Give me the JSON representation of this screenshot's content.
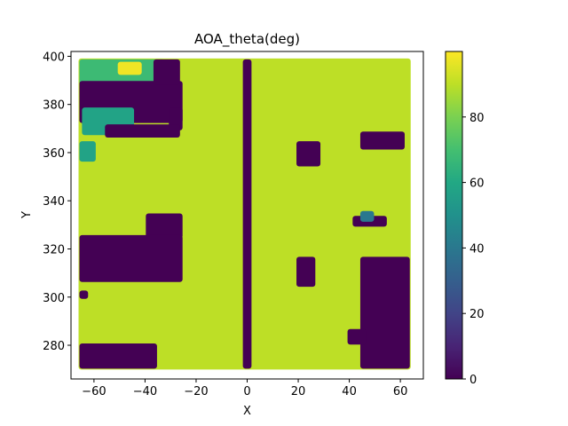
{
  "chart_data": {
    "type": "heatmap",
    "title": "AOA_theta(deg)",
    "xlabel": "X",
    "ylabel": "Y",
    "xlim": [
      -69,
      69
    ],
    "ylim": [
      266,
      402
    ],
    "xticks": [
      -60,
      -40,
      -20,
      0,
      20,
      40,
      60
    ],
    "yticks": [
      280,
      300,
      320,
      340,
      360,
      380,
      400
    ],
    "xtick_labels": [
      "−60",
      "−40",
      "−20",
      "0",
      "20",
      "40",
      "60"
    ],
    "ytick_labels": [
      "280",
      "300",
      "320",
      "340",
      "360",
      "380",
      "400"
    ],
    "colormap": "viridis",
    "color_range": [
      0,
      100
    ],
    "colorbar_ticks": [
      0,
      20,
      40,
      60,
      80
    ],
    "colorbar_tick_labels": [
      "0",
      "20",
      "40",
      "60",
      "80"
    ],
    "grid": false,
    "scatter_extent": {
      "x": [
        -65,
        63
      ],
      "y": [
        271,
        398
      ]
    },
    "background_value": 90,
    "regions": [
      {
        "x": [
          -65,
          -33
        ],
        "y": [
          383,
          398
        ],
        "value": 68,
        "note": "green patch"
      },
      {
        "x": [
          -50,
          -42
        ],
        "y": [
          393,
          397
        ],
        "value": 98,
        "note": "yellow spot"
      },
      {
        "x": [
          -65,
          -26
        ],
        "y": [
          373,
          389
        ],
        "value": 0
      },
      {
        "x": [
          -36,
          -27
        ],
        "y": [
          389,
          398
        ],
        "value": 0
      },
      {
        "x": [
          -30,
          -26
        ],
        "y": [
          370,
          378
        ],
        "value": 0
      },
      {
        "x": [
          -64,
          -45
        ],
        "y": [
          368,
          378
        ],
        "value": 58,
        "note": "teal patch"
      },
      {
        "x": [
          -55,
          -27
        ],
        "y": [
          367,
          371
        ],
        "value": 0
      },
      {
        "x": [
          -65,
          -60
        ],
        "y": [
          357,
          364
        ],
        "value": 58,
        "note": "teal patch"
      },
      {
        "x": [
          -39,
          -26
        ],
        "y": [
          325,
          334
        ],
        "value": 0
      },
      {
        "x": [
          -65,
          -26
        ],
        "y": [
          307,
          325
        ],
        "value": 0
      },
      {
        "x": [
          -65,
          -36
        ],
        "y": [
          271,
          280
        ],
        "value": 0
      },
      {
        "x": [
          -1,
          1
        ],
        "y": [
          271,
          398
        ],
        "value": 0,
        "note": "vertical line at X=0"
      },
      {
        "x": [
          20,
          28
        ],
        "y": [
          355,
          364
        ],
        "value": 0
      },
      {
        "x": [
          20,
          26
        ],
        "y": [
          305,
          316
        ],
        "value": 0
      },
      {
        "x": [
          45,
          61
        ],
        "y": [
          362,
          368
        ],
        "value": 0
      },
      {
        "x": [
          42,
          54
        ],
        "y": [
          330,
          333
        ],
        "value": 0
      },
      {
        "x": [
          45,
          49
        ],
        "y": [
          332,
          335
        ],
        "value": 40,
        "note": "small blue-teal spot"
      },
      {
        "x": [
          45,
          63
        ],
        "y": [
          271,
          316
        ],
        "value": 0
      },
      {
        "x": [
          40,
          46
        ],
        "y": [
          281,
          286
        ],
        "value": 0
      },
      {
        "x": [
          -65,
          -63
        ],
        "y": [
          300,
          302
        ],
        "value": 0
      }
    ]
  },
  "colors": {
    "viridis_0": "#440154",
    "viridis_20": "#414487",
    "viridis_40": "#2a788e",
    "viridis_60": "#22a884",
    "viridis_80": "#7ad151",
    "viridis_100": "#fde725",
    "background_cell": "#bddf26"
  }
}
